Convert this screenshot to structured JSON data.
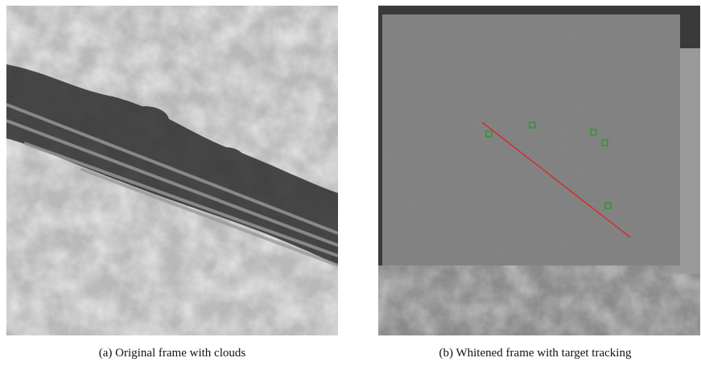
{
  "figure": {
    "subfigures": [
      {
        "caption": "(a) Original frame with clouds"
      },
      {
        "caption": "(b) Whitened frame with target tracking"
      }
    ]
  }
}
